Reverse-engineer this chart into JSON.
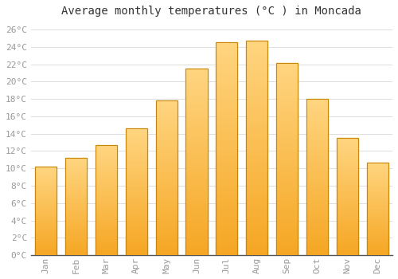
{
  "title": "Average monthly temperatures (°C ) in Moncada",
  "months": [
    "Jan",
    "Feb",
    "Mar",
    "Apr",
    "May",
    "Jun",
    "Jul",
    "Aug",
    "Sep",
    "Oct",
    "Nov",
    "Dec"
  ],
  "values": [
    10.2,
    11.2,
    12.7,
    14.6,
    17.8,
    21.5,
    24.5,
    24.7,
    22.2,
    18.0,
    13.5,
    10.7
  ],
  "bar_color_bottom": "#F5A623",
  "bar_color_top": "#FFD580",
  "bar_edge_color": "#C8860A",
  "ylim": [
    0,
    27
  ],
  "yticks": [
    0,
    2,
    4,
    6,
    8,
    10,
    12,
    14,
    16,
    18,
    20,
    22,
    24,
    26
  ],
  "ytick_labels": [
    "0°C",
    "2°C",
    "4°C",
    "6°C",
    "8°C",
    "10°C",
    "12°C",
    "14°C",
    "16°C",
    "18°C",
    "20°C",
    "22°C",
    "24°C",
    "26°C"
  ],
  "bg_color": "#ffffff",
  "plot_bg_color": "#ffffff",
  "grid_color": "#d8d8d8",
  "title_fontsize": 10,
  "tick_fontsize": 8,
  "font_family": "monospace",
  "tick_color": "#999999",
  "spine_color": "#555555"
}
